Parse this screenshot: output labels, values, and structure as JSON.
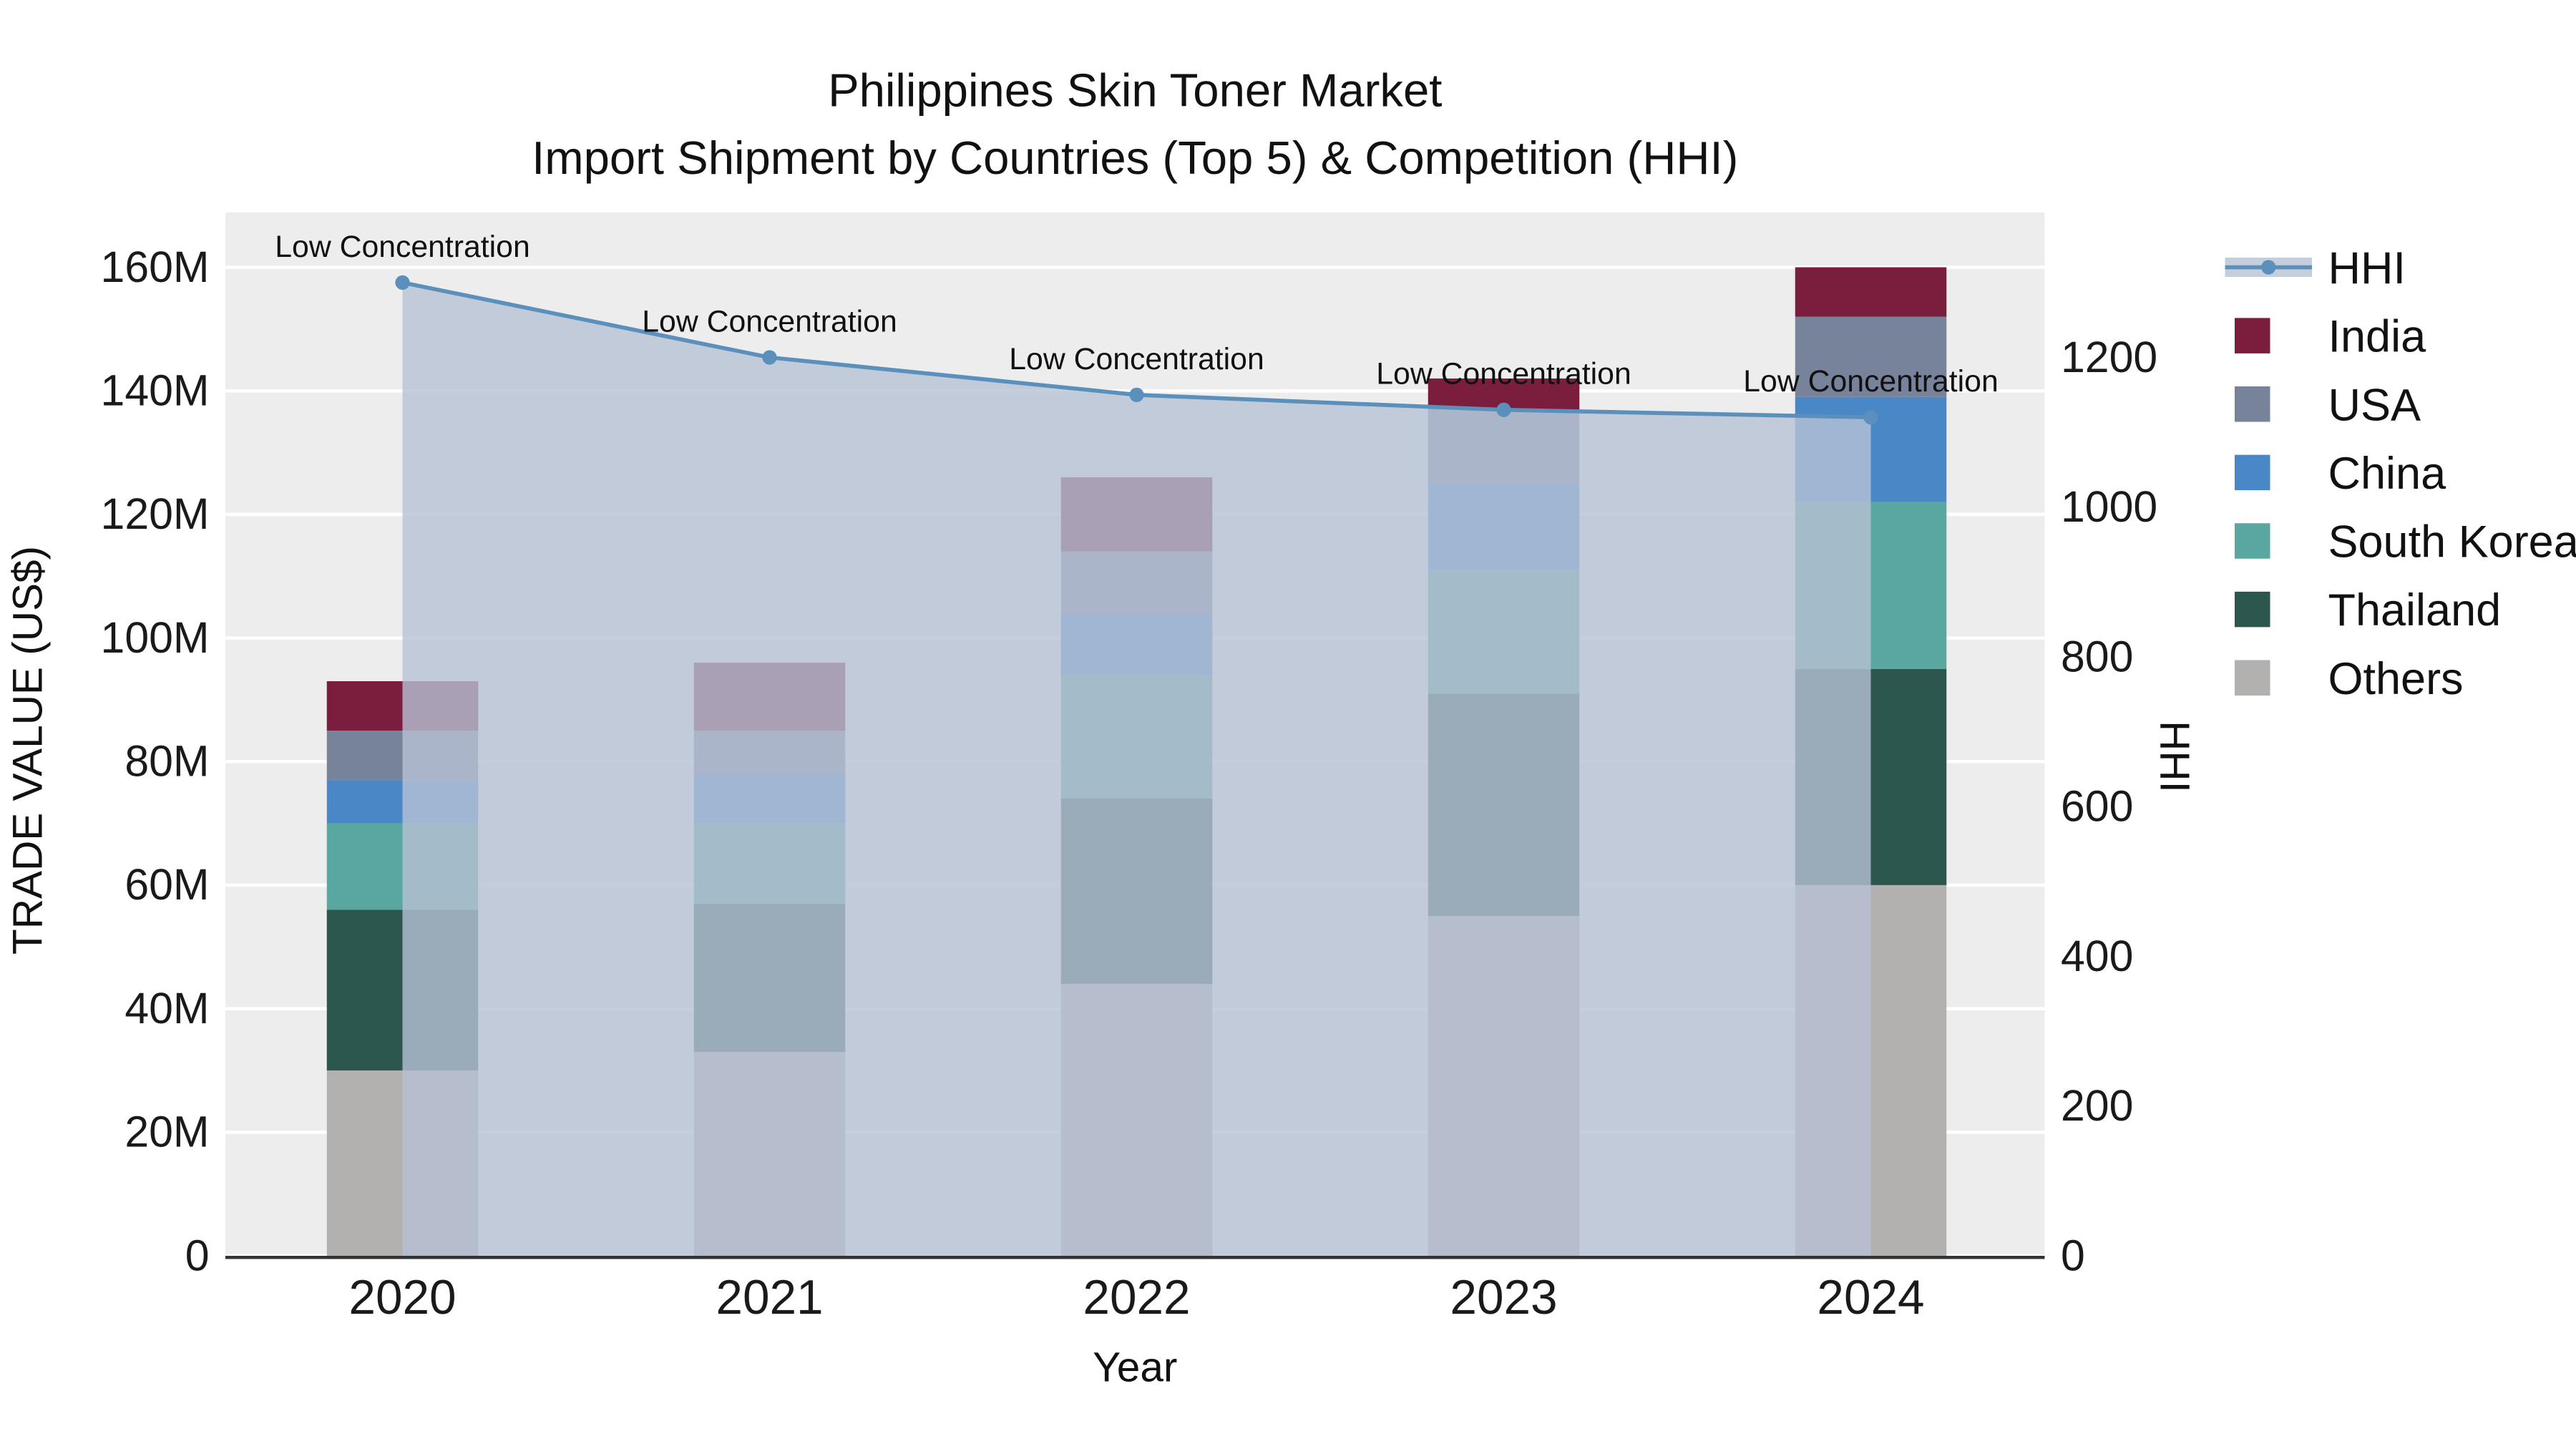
{
  "title": {
    "line1": "Philippines Skin Toner Market",
    "line2": "Import Shipment by Countries (Top 5) & Competition (HHI)"
  },
  "chart_data": {
    "type": "bar",
    "subtype": "stacked-bars-with-hhi-line-and-area",
    "unit": "M US$",
    "categories": [
      "2020",
      "2021",
      "2022",
      "2023",
      "2024"
    ],
    "series": [
      {
        "name": "Others",
        "color": "#b2b1b0",
        "values": [
          30,
          33,
          44,
          55,
          60
        ]
      },
      {
        "name": "Thailand",
        "color": "#2b574e",
        "values": [
          26,
          24,
          30,
          36,
          35
        ]
      },
      {
        "name": "South Korea",
        "color": "#5aa7a1",
        "values": [
          14,
          13,
          20,
          20,
          27
        ]
      },
      {
        "name": "China",
        "color": "#4a87c6",
        "values": [
          7,
          8,
          10,
          14,
          17
        ]
      },
      {
        "name": "USA",
        "color": "#77839a",
        "values": [
          8,
          7,
          10,
          12,
          13
        ]
      },
      {
        "name": "India",
        "color": "#7b1d3c",
        "values": [
          8,
          11,
          12,
          5,
          8
        ]
      }
    ],
    "line_series": {
      "name": "HHI",
      "color": "#5b8fbc",
      "area_color": "#b6c2d4",
      "values": [
        1300,
        1200,
        1150,
        1130,
        1120
      ],
      "annotations": [
        "Low Concentration",
        "Low Concentration",
        "Low Concentration",
        "Low Concentration",
        "Low Concentration"
      ]
    },
    "xlabel": "Year",
    "ylabel_left": "TRADE VALUE (US$)",
    "ylabel_right": "HHI",
    "y_left_tick_values": [
      0,
      20,
      40,
      60,
      80,
      100,
      120,
      140,
      160
    ],
    "y_left_ticks": [
      "0",
      "20M",
      "40M",
      "60M",
      "80M",
      "100M",
      "120M",
      "140M",
      "160M"
    ],
    "y_left_max": 160,
    "y_right_ticks": [
      0,
      200,
      400,
      600,
      800,
      1000,
      1200
    ],
    "grid": true,
    "legend_position": "right",
    "legend": [
      {
        "label": "HHI",
        "type": "line",
        "color": "#5b8fbc"
      },
      {
        "label": "India",
        "type": "swatch",
        "color": "#7b1d3c"
      },
      {
        "label": "USA",
        "type": "swatch",
        "color": "#77839a"
      },
      {
        "label": "China",
        "type": "swatch",
        "color": "#4a87c6"
      },
      {
        "label": "South Korea",
        "type": "swatch",
        "color": "#5aa7a1"
      },
      {
        "label": "Thailand",
        "type": "swatch",
        "color": "#2b574e"
      },
      {
        "label": "Others",
        "type": "swatch",
        "color": "#b2b1b0"
      }
    ],
    "colors": {
      "plot_background": "#ededee",
      "gridline": "#ffffff",
      "axis_line": "#333333"
    }
  }
}
